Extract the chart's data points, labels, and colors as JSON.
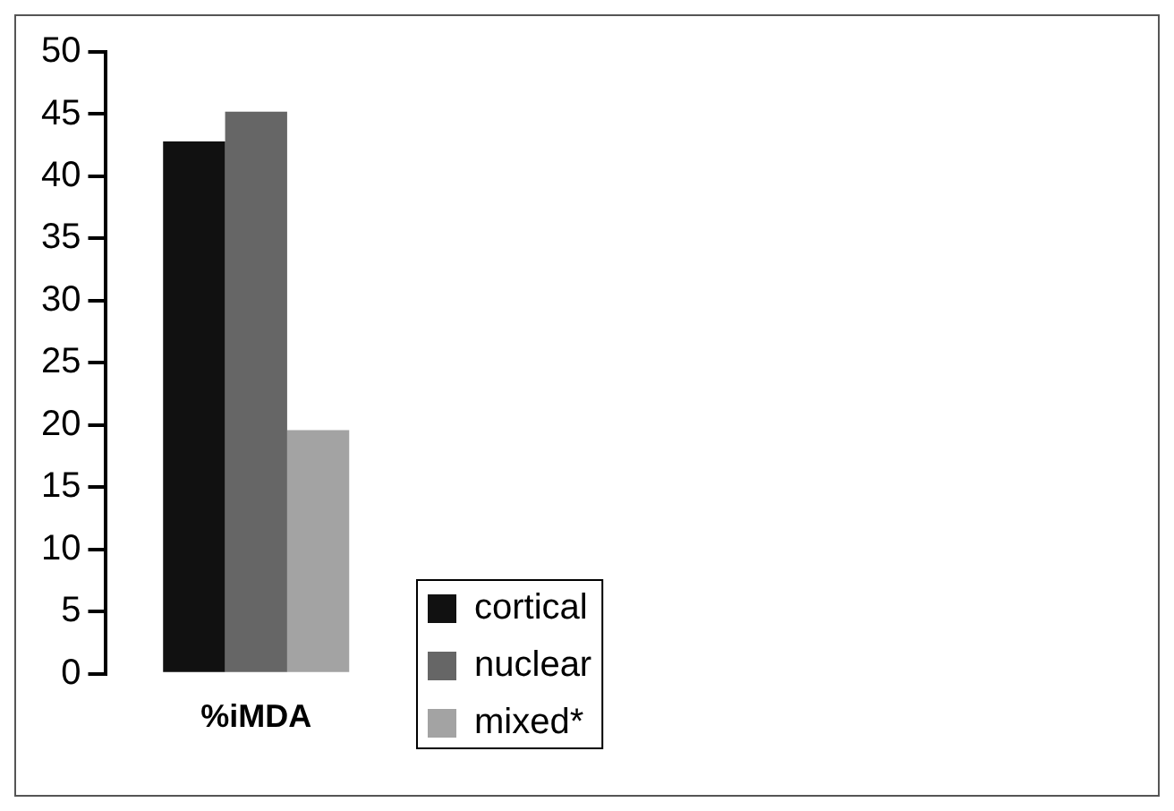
{
  "chart_data": {
    "type": "bar",
    "categories": [
      "%iMDA"
    ],
    "series": [
      {
        "name": "cortical",
        "color": "#111111",
        "values": [
          42.8
        ]
      },
      {
        "name": "nuclear",
        "color": "#666666",
        "values": [
          45.2
        ]
      },
      {
        "name": "mixed*",
        "color": "#a3a3a3",
        "values": [
          19.6
        ]
      }
    ],
    "ylim": [
      0,
      50
    ],
    "yticks": [
      0,
      5,
      10,
      15,
      20,
      25,
      30,
      35,
      40,
      45,
      50
    ],
    "grid": false,
    "legend": "right"
  }
}
